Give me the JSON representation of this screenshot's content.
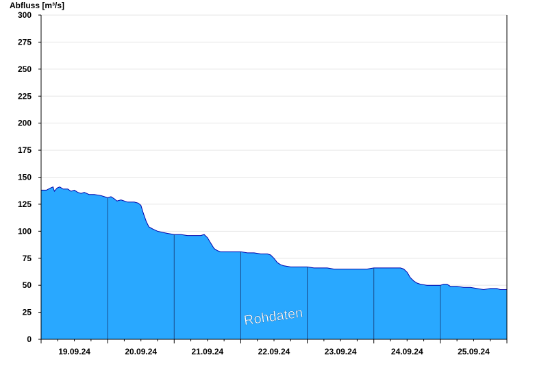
{
  "chart_data": {
    "type": "area",
    "title": "",
    "ylabel": "Abfluss [m³/s]",
    "xlabel": "",
    "ylim": [
      0,
      300
    ],
    "y_ticks": [
      "0",
      "25",
      "50",
      "75",
      "100",
      "125",
      "150",
      "175",
      "200",
      "225",
      "250",
      "275",
      "300"
    ],
    "x_range_days": [
      0,
      7
    ],
    "x_tick_labels": [
      "19.09.24",
      "20.09.24",
      "21.09.24",
      "22.09.24",
      "23.09.24",
      "24.09.24",
      "25.09.24"
    ],
    "grid": true,
    "fill_color": "#29a8ff",
    "line_color": "#0000aa",
    "watermark": "Rohdaten",
    "series": [
      {
        "values": [
          [
            0.0,
            138
          ],
          [
            0.08,
            138
          ],
          [
            0.14,
            140
          ],
          [
            0.18,
            141
          ],
          [
            0.2,
            137
          ],
          [
            0.24,
            140
          ],
          [
            0.28,
            141
          ],
          [
            0.33,
            139
          ],
          [
            0.4,
            139
          ],
          [
            0.45,
            137
          ],
          [
            0.5,
            138
          ],
          [
            0.55,
            136
          ],
          [
            0.6,
            135
          ],
          [
            0.65,
            136
          ],
          [
            0.72,
            134
          ],
          [
            0.8,
            134
          ],
          [
            0.9,
            133
          ],
          [
            0.95,
            132
          ],
          [
            1.0,
            131
          ],
          [
            1.05,
            132
          ],
          [
            1.1,
            130
          ],
          [
            1.14,
            128
          ],
          [
            1.2,
            129
          ],
          [
            1.25,
            128
          ],
          [
            1.3,
            127
          ],
          [
            1.4,
            127
          ],
          [
            1.46,
            126
          ],
          [
            1.5,
            124
          ],
          [
            1.54,
            116
          ],
          [
            1.58,
            109
          ],
          [
            1.62,
            104
          ],
          [
            1.68,
            102
          ],
          [
            1.75,
            100
          ],
          [
            1.82,
            99
          ],
          [
            1.9,
            98
          ],
          [
            2.0,
            97
          ],
          [
            2.1,
            97
          ],
          [
            2.2,
            96
          ],
          [
            2.3,
            96
          ],
          [
            2.4,
            96
          ],
          [
            2.45,
            97
          ],
          [
            2.5,
            94
          ],
          [
            2.55,
            89
          ],
          [
            2.6,
            84
          ],
          [
            2.65,
            82
          ],
          [
            2.7,
            81
          ],
          [
            2.8,
            81
          ],
          [
            2.9,
            81
          ],
          [
            3.0,
            81
          ],
          [
            3.1,
            80
          ],
          [
            3.2,
            80
          ],
          [
            3.3,
            79
          ],
          [
            3.4,
            79
          ],
          [
            3.45,
            78
          ],
          [
            3.5,
            75
          ],
          [
            3.55,
            71
          ],
          [
            3.6,
            69
          ],
          [
            3.65,
            68
          ],
          [
            3.75,
            67
          ],
          [
            3.9,
            67
          ],
          [
            4.0,
            67
          ],
          [
            4.1,
            66
          ],
          [
            4.2,
            66
          ],
          [
            4.3,
            66
          ],
          [
            4.4,
            65
          ],
          [
            4.5,
            65
          ],
          [
            4.6,
            65
          ],
          [
            4.7,
            65
          ],
          [
            4.8,
            65
          ],
          [
            4.9,
            65
          ],
          [
            5.0,
            66
          ],
          [
            5.1,
            66
          ],
          [
            5.2,
            66
          ],
          [
            5.3,
            66
          ],
          [
            5.4,
            66
          ],
          [
            5.45,
            65
          ],
          [
            5.5,
            62
          ],
          [
            5.55,
            57
          ],
          [
            5.6,
            54
          ],
          [
            5.65,
            52
          ],
          [
            5.7,
            51
          ],
          [
            5.8,
            50
          ],
          [
            5.9,
            50
          ],
          [
            6.0,
            50
          ],
          [
            6.05,
            51
          ],
          [
            6.1,
            51
          ],
          [
            6.15,
            49
          ],
          [
            6.25,
            49
          ],
          [
            6.35,
            48
          ],
          [
            6.45,
            48
          ],
          [
            6.55,
            47
          ],
          [
            6.65,
            46
          ],
          [
            6.75,
            47
          ],
          [
            6.85,
            47
          ],
          [
            6.9,
            46
          ],
          [
            6.95,
            46
          ],
          [
            7.0,
            46
          ]
        ]
      }
    ]
  }
}
